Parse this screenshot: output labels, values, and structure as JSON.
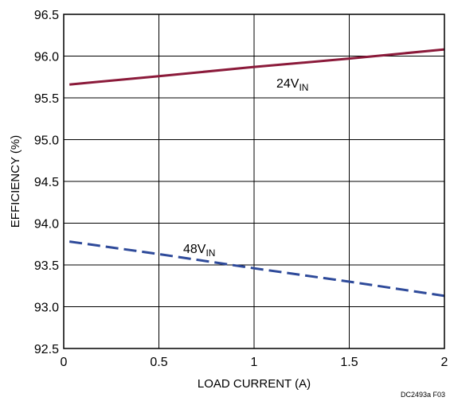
{
  "chart_data": {
    "type": "line",
    "xlabel": "LOAD CURRENT (A)",
    "ylabel": "EFFICIENCY (%)",
    "xlim": [
      0,
      2
    ],
    "ylim": [
      92.5,
      96.5
    ],
    "xticks": [
      "0",
      "0.5",
      "1",
      "1.5",
      "2"
    ],
    "yticks": [
      "92.5",
      "93.0",
      "93.5",
      "94.0",
      "94.5",
      "95.0",
      "95.5",
      "96.0",
      "96.5"
    ],
    "grid": true,
    "series": [
      {
        "label_main": "24V",
        "label_sub": "IN",
        "color": "#8b1a3a",
        "style": "solid",
        "x": [
          0.03,
          0.5,
          1.0,
          1.5,
          2.0
        ],
        "y": [
          95.66,
          95.76,
          95.87,
          95.97,
          96.08
        ]
      },
      {
        "label_main": "48V",
        "label_sub": "IN",
        "color": "#2e4a9a",
        "style": "dashed",
        "x": [
          0.03,
          0.5,
          1.0,
          1.5,
          2.0
        ],
        "y": [
          93.78,
          93.63,
          93.46,
          93.3,
          93.13
        ]
      }
    ],
    "figure_id": "DC2493a F03"
  }
}
